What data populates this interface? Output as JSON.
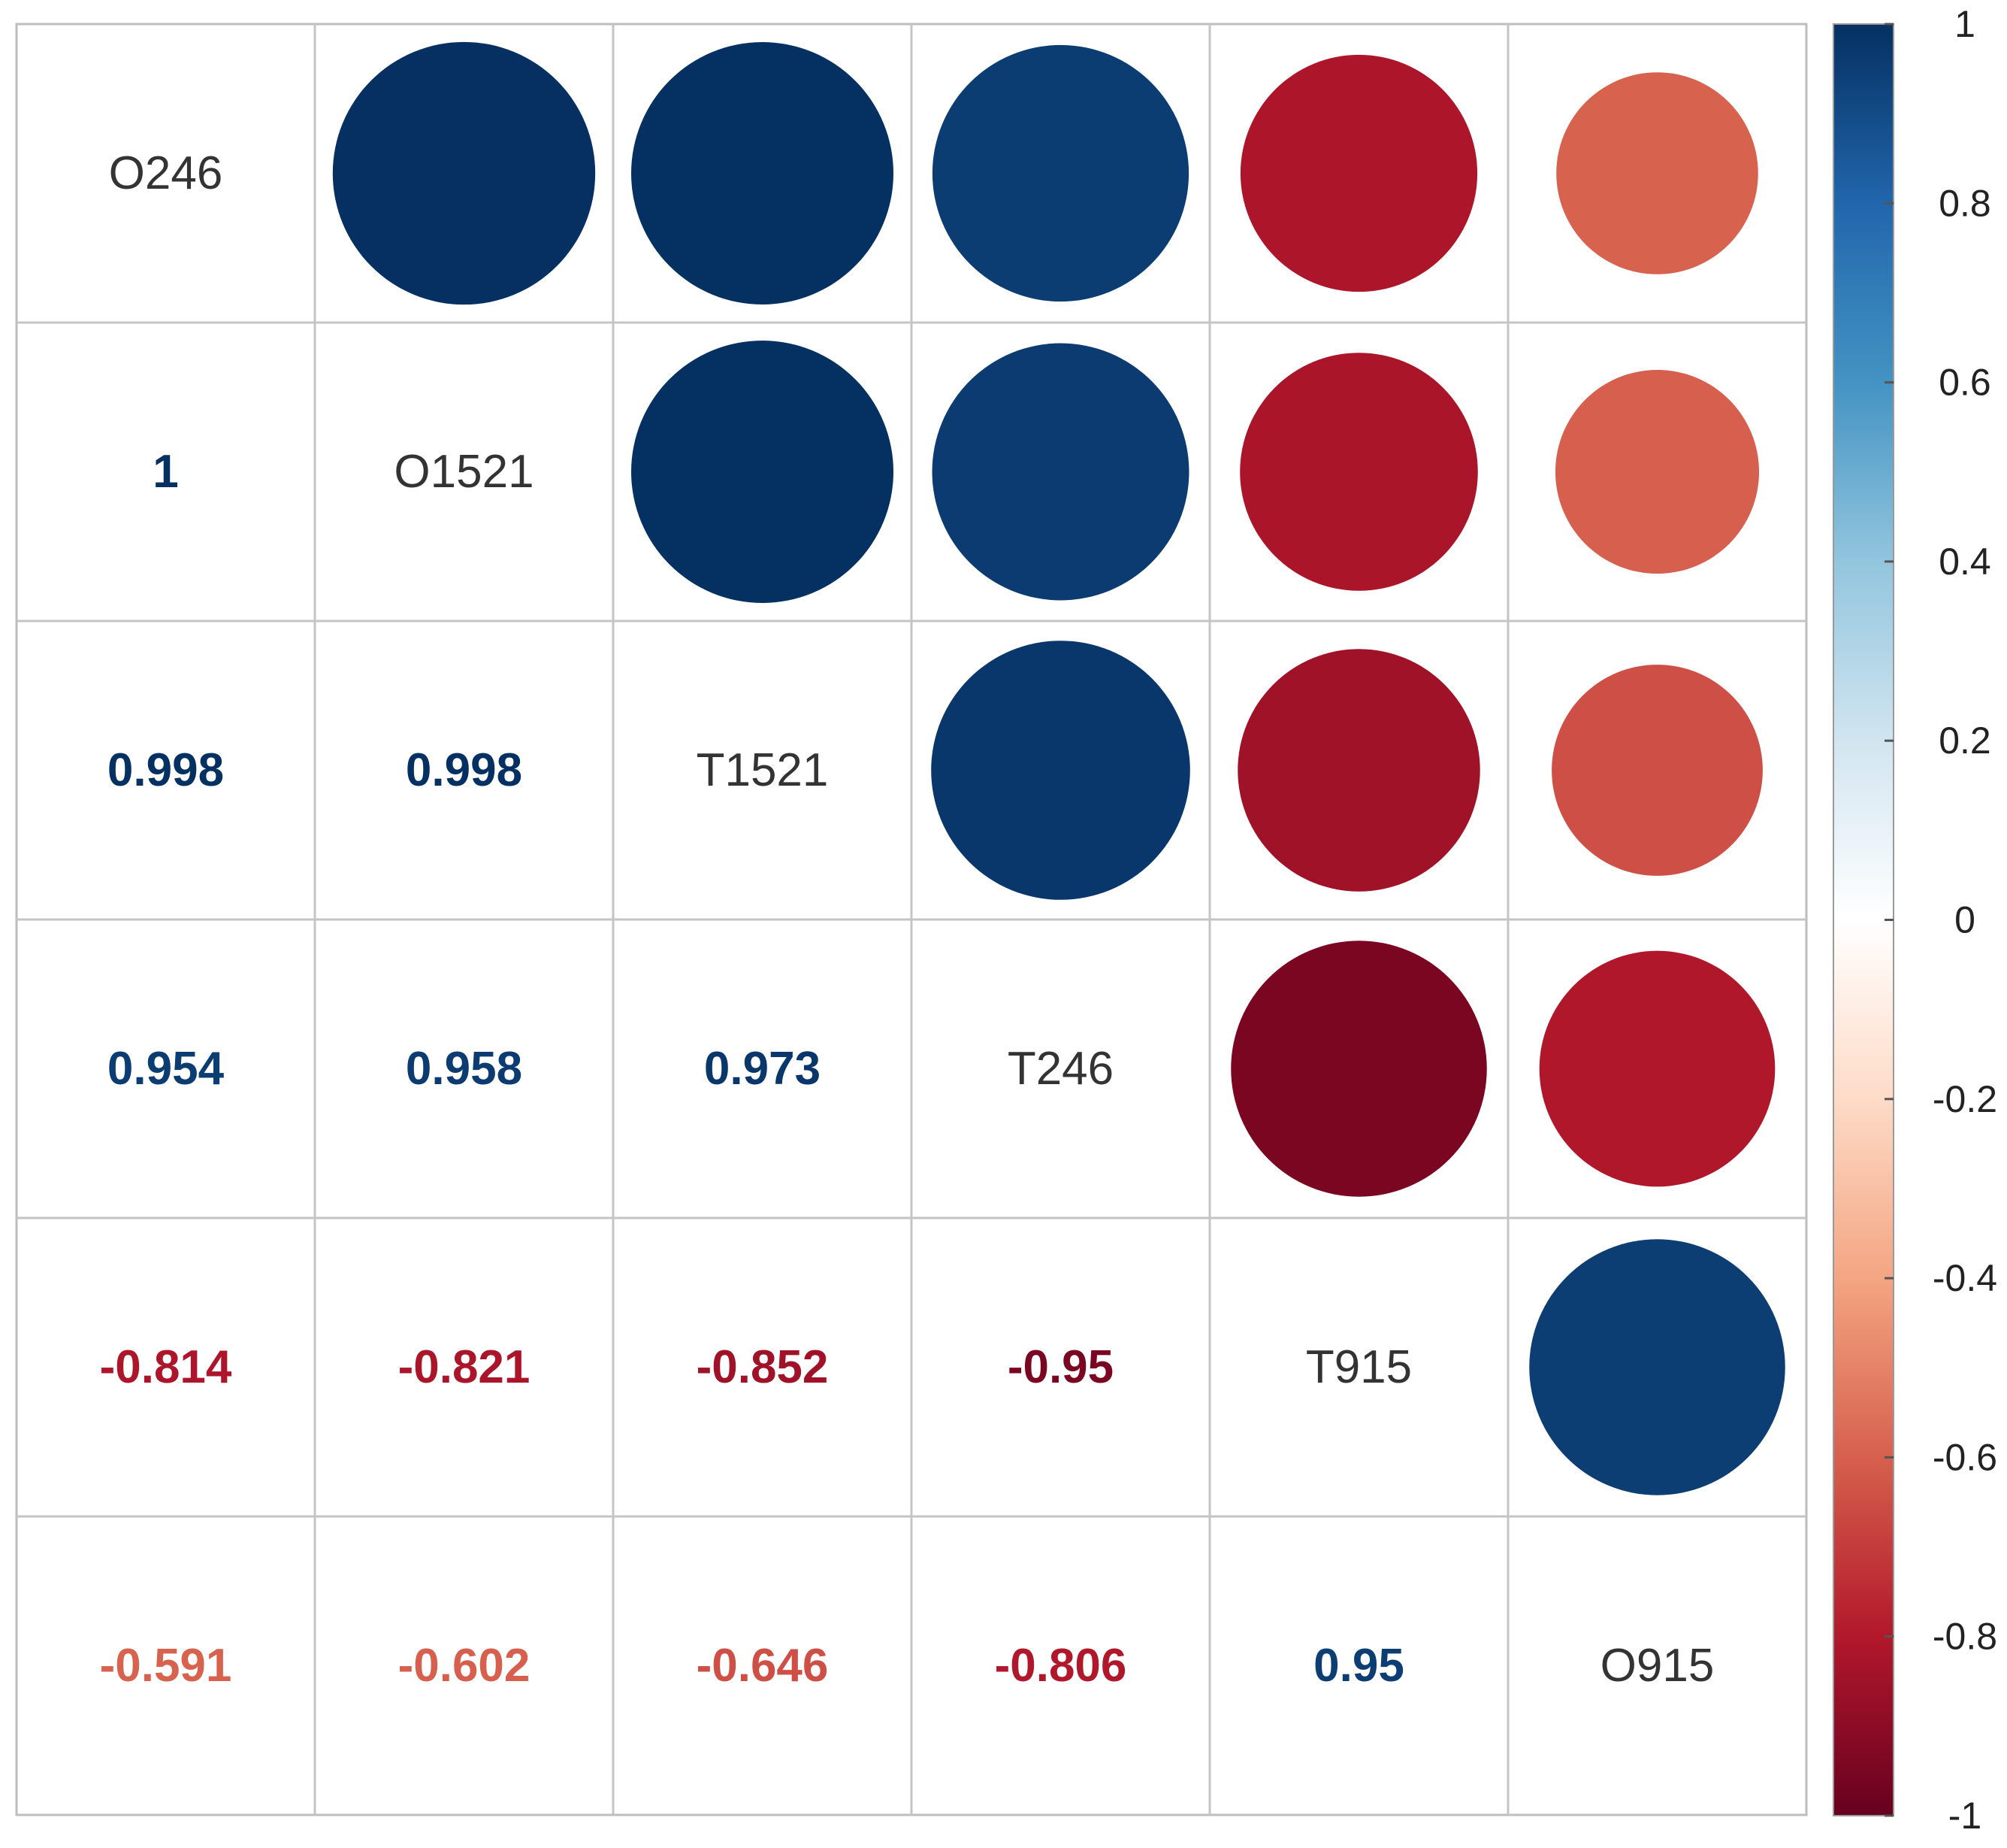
{
  "chart_data": {
    "type": "heatmap",
    "variables": [
      "O246",
      "O1521",
      "T1521",
      "T246",
      "T915",
      "O915"
    ],
    "correlation_matrix": [
      [
        1,
        1,
        0.998,
        0.954,
        -0.814,
        -0.591
      ],
      [
        1,
        1,
        0.998,
        0.958,
        -0.821,
        -0.602
      ],
      [
        0.998,
        0.998,
        1,
        0.973,
        -0.852,
        -0.646
      ],
      [
        0.954,
        0.958,
        0.973,
        1,
        -0.95,
        -0.806
      ],
      [
        -0.814,
        -0.821,
        -0.852,
        -0.95,
        1,
        0.95
      ],
      [
        -0.591,
        -0.602,
        -0.646,
        -0.806,
        0.95,
        1
      ]
    ],
    "lower_labels": [
      [],
      [
        "1"
      ],
      [
        "0.998",
        "0.998"
      ],
      [
        "0.954",
        "0.958",
        "0.973"
      ],
      [
        "-0.814",
        "-0.821",
        "-0.852",
        "-0.95"
      ],
      [
        "-0.591",
        "-0.602",
        "-0.646",
        "-0.806",
        "0.95"
      ]
    ],
    "upper_display": "circle",
    "lower_display": "number",
    "colorbar": {
      "range": [
        -1,
        1
      ],
      "ticks": [
        "1",
        "0.8",
        "0.6",
        "0.4",
        "0.2",
        "0",
        "-0.2",
        "-0.4",
        "-0.6",
        "-0.8",
        "-1"
      ],
      "colors": [
        "#67001F",
        "#B2182B",
        "#D6604D",
        "#F4A582",
        "#FDDBC7",
        "#FFFFFF",
        "#D1E5F0",
        "#92C5DE",
        "#4393C3",
        "#2166AC",
        "#053061"
      ]
    },
    "grid": true
  }
}
